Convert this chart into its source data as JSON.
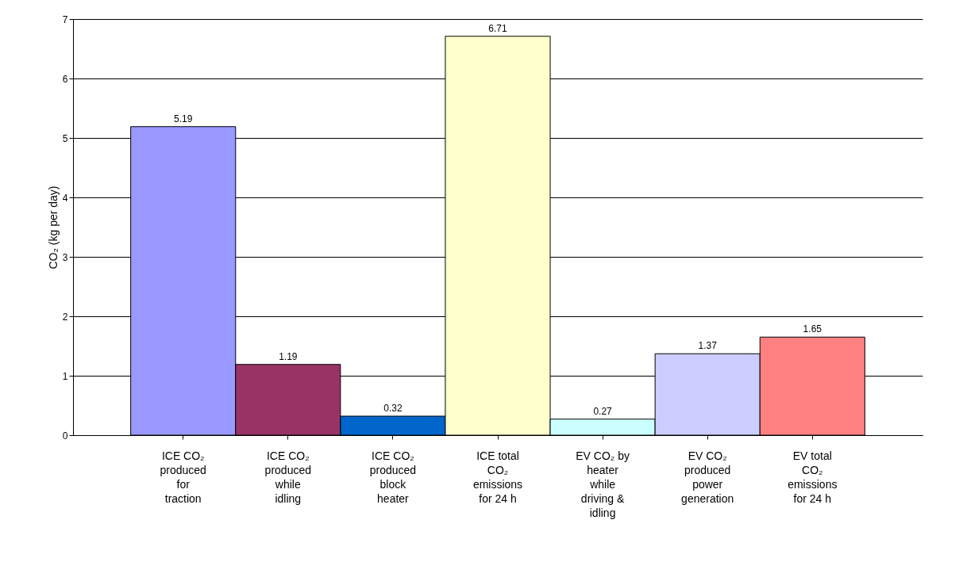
{
  "chart_data": {
    "type": "bar",
    "categories": [
      "ICE CO₂ produced for traction",
      "ICE CO₂ produced while idling",
      "ICE CO₂ produced block heater",
      "ICE total CO₂ emissions for 24 h",
      "EV CO₂ by heater while driving & idling",
      "EV CO₂ produced power generation",
      "EV total CO₂ emissions for 24 h"
    ],
    "values": [
      5.19,
      1.19,
      0.32,
      6.71,
      0.27,
      1.37,
      1.65
    ],
    "colors": [
      "#9999ff",
      "#993366",
      "#0066cc",
      "#ffffcc",
      "#ccffff",
      "#ccccff",
      "#ff8080"
    ],
    "ylabel": "CO₂ (kg per day)",
    "ylim": [
      0,
      7
    ],
    "yticks": [
      0,
      1,
      2,
      3,
      4,
      5,
      6,
      7
    ],
    "grid": "y",
    "data_labels": true
  }
}
